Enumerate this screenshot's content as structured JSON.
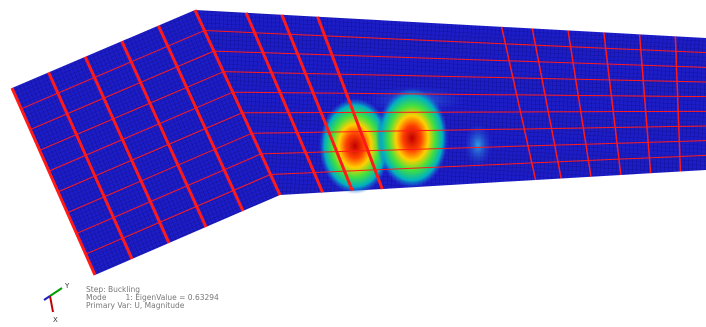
{
  "legend": {
    "step": "Step: Buckling",
    "mode": "Mode        1: EigenValue = 0.63294",
    "primary_var": "Primary Var: U, Magnitude"
  },
  "triad": {
    "y_label": "Y",
    "x_label": "X"
  }
}
